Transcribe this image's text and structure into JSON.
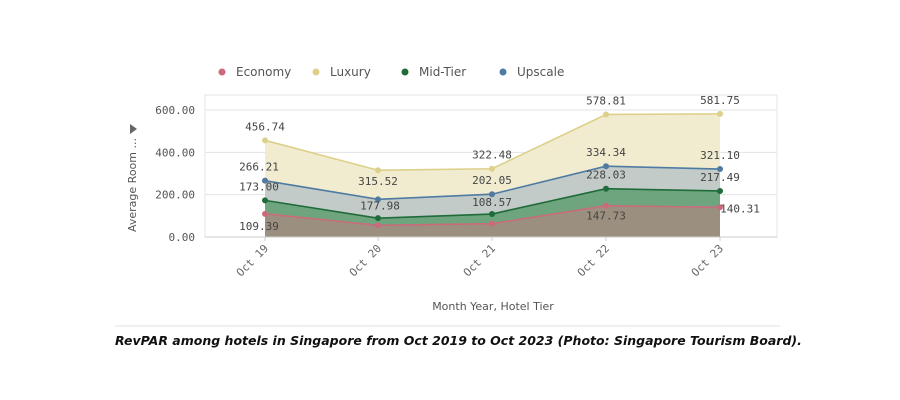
{
  "chart_data": {
    "type": "area",
    "categories": [
      "Oct 19",
      "Oct 20",
      "Oct 21",
      "Oct 22",
      "Oct 23"
    ],
    "series": [
      {
        "name": "Economy",
        "values": [
          109.39,
          55,
          63,
          147.73,
          140.31
        ],
        "labels": [
          "109.39",
          "",
          "",
          "147.73",
          "140.31"
        ],
        "color": "#c96b7b",
        "fill": "#9b9080"
      },
      {
        "name": "Luxury",
        "values": [
          456.74,
          315.52,
          322.48,
          578.81,
          581.75
        ],
        "labels": [
          "456.74",
          "315.52",
          "322.48",
          "578.81",
          "581.75"
        ],
        "color": "#ddd08a",
        "fill": "#f1ecd0"
      },
      {
        "name": "Mid-Tier",
        "values": [
          173.0,
          89,
          108.57,
          228.03,
          217.49
        ],
        "labels": [
          "173.00",
          "",
          "108.57",
          "228.03",
          "217.49"
        ],
        "color": "#1f6b3a",
        "fill": "#6fa57e"
      },
      {
        "name": "Upscale",
        "values": [
          266.21,
          177.98,
          202.05,
          334.34,
          321.1
        ],
        "labels": [
          "266.21",
          "177.98",
          "202.05",
          "334.34",
          "321.10"
        ],
        "color": "#4f7ba3",
        "fill": "#c2cbc8"
      }
    ],
    "xlabel": "Month Year, Hotel Tier",
    "ylabel": "Average Room ...",
    "ylim": [
      0,
      600
    ],
    "yticks": [
      "0.00",
      "200.00",
      "400.00",
      "600.00"
    ],
    "legend": "top-left",
    "grid": true
  },
  "caption": "RevPAR among hotels in Singapore from Oct 2019 to Oct 2023 (Photo: Singapore Tourism Board)."
}
